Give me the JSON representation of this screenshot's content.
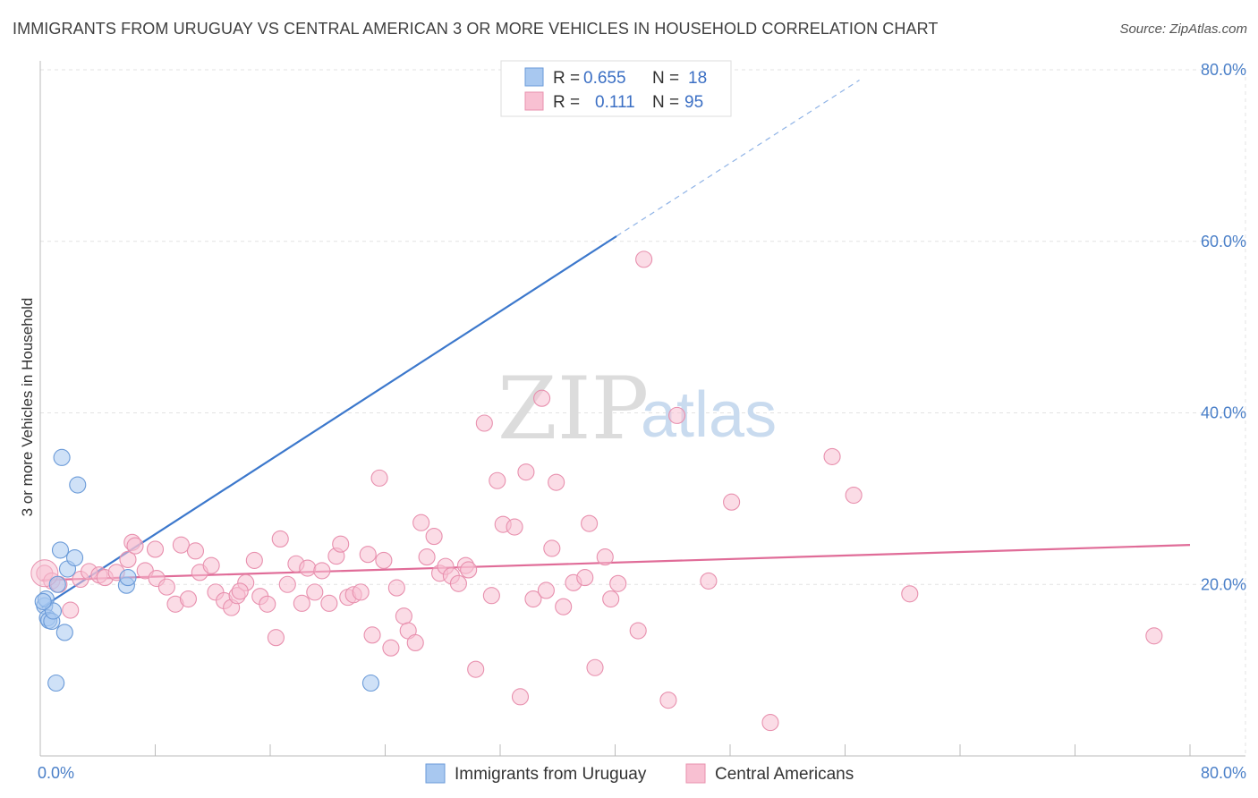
{
  "title": "IMMIGRANTS FROM URUGUAY VS CENTRAL AMERICAN 3 OR MORE VEHICLES IN HOUSEHOLD CORRELATION CHART",
  "source": "Source: ZipAtlas.com",
  "watermark": {
    "zip": "ZIP",
    "atlas": "atlas"
  },
  "legend_top": [
    {
      "r_label": "R =",
      "r_value": "0.655",
      "n_label": "N =",
      "n_value": "18",
      "color": "#a8c8f0",
      "stroke": "#6a9ad8"
    },
    {
      "r_label": "R =",
      "r_value": "0.111",
      "n_label": "N =",
      "n_value": "95",
      "color": "#f8c0d2",
      "stroke": "#e890ae"
    }
  ],
  "legend_bottom": [
    {
      "label": "Immigrants from Uruguay",
      "color": "#a8c8f0",
      "stroke": "#6a9ad8"
    },
    {
      "label": "Central Americans",
      "color": "#f8c0d2",
      "stroke": "#e890ae"
    }
  ],
  "chart_data": {
    "type": "scatter",
    "title": "IMMIGRANTS FROM URUGUAY VS CENTRAL AMERICAN 3 OR MORE VEHICLES IN HOUSEHOLD CORRELATION CHART",
    "xlabel": "",
    "ylabel": "3 or more Vehicles in Household",
    "xlim": [
      0,
      80
    ],
    "ylim": [
      0,
      80
    ],
    "x_tick_labels": [
      "0.0%",
      "80.0%"
    ],
    "y_ticks": [
      20,
      40,
      60,
      80
    ],
    "y_tick_labels": [
      "20.0%",
      "40.0%",
      "60.0%",
      "80.0%"
    ],
    "grid": true,
    "series": [
      {
        "name": "Immigrants from Uruguay",
        "color": "#6a9ad8",
        "fill": "#a8c8f0",
        "trend": {
          "x": [
            0.1,
            40.1
          ],
          "y": [
            17.3,
            60.6
          ],
          "dashed_to": [
            57.0,
            78.8
          ]
        },
        "points": [
          [
            0.3,
            17.5
          ],
          [
            0.4,
            18.3
          ],
          [
            0.5,
            16.1
          ],
          [
            0.6,
            15.8
          ],
          [
            0.8,
            15.7
          ],
          [
            0.9,
            16.9
          ],
          [
            1.1,
            8.5
          ],
          [
            1.2,
            20.0
          ],
          [
            1.4,
            24.0
          ],
          [
            1.5,
            34.8
          ],
          [
            1.7,
            14.4
          ],
          [
            1.9,
            21.8
          ],
          [
            2.4,
            23.1
          ],
          [
            2.6,
            31.6
          ],
          [
            6.0,
            19.9
          ],
          [
            6.1,
            20.8
          ],
          [
            23.0,
            8.5
          ],
          [
            0.2,
            18.0
          ]
        ]
      },
      {
        "name": "Central Americans",
        "color": "#e890ae",
        "fill": "#f8c0d2",
        "trend": {
          "x": [
            0.1,
            80.0
          ],
          "y": [
            20.5,
            24.6
          ]
        },
        "points": [
          [
            0.3,
            21.3
          ],
          [
            0.8,
            20.4
          ],
          [
            1.3,
            20.0
          ],
          [
            2.1,
            17.0
          ],
          [
            2.8,
            20.6
          ],
          [
            3.4,
            21.5
          ],
          [
            4.1,
            21.1
          ],
          [
            4.5,
            20.8
          ],
          [
            5.3,
            21.4
          ],
          [
            6.1,
            22.9
          ],
          [
            6.4,
            24.9
          ],
          [
            6.6,
            24.5
          ],
          [
            7.3,
            21.6
          ],
          [
            8.0,
            24.1
          ],
          [
            8.1,
            20.7
          ],
          [
            8.8,
            19.7
          ],
          [
            9.4,
            17.7
          ],
          [
            9.8,
            24.6
          ],
          [
            10.3,
            18.3
          ],
          [
            10.8,
            23.9
          ],
          [
            11.1,
            21.4
          ],
          [
            11.9,
            22.2
          ],
          [
            12.2,
            19.1
          ],
          [
            12.8,
            18.1
          ],
          [
            13.3,
            17.3
          ],
          [
            13.7,
            18.7
          ],
          [
            14.3,
            20.2
          ],
          [
            14.9,
            22.8
          ],
          [
            15.3,
            18.6
          ],
          [
            15.8,
            17.7
          ],
          [
            16.4,
            13.8
          ],
          [
            16.7,
            25.3
          ],
          [
            17.2,
            20.0
          ],
          [
            17.8,
            22.4
          ],
          [
            18.2,
            17.8
          ],
          [
            18.6,
            21.9
          ],
          [
            19.1,
            19.1
          ],
          [
            19.6,
            21.6
          ],
          [
            20.1,
            17.8
          ],
          [
            20.6,
            23.3
          ],
          [
            20.9,
            24.7
          ],
          [
            21.4,
            18.5
          ],
          [
            21.8,
            18.8
          ],
          [
            22.3,
            19.1
          ],
          [
            22.8,
            23.5
          ],
          [
            23.1,
            14.1
          ],
          [
            23.6,
            32.4
          ],
          [
            23.9,
            22.8
          ],
          [
            24.4,
            12.6
          ],
          [
            24.8,
            19.6
          ],
          [
            25.3,
            16.3
          ],
          [
            25.6,
            14.6
          ],
          [
            26.1,
            13.2
          ],
          [
            26.5,
            27.2
          ],
          [
            26.9,
            23.2
          ],
          [
            27.4,
            25.6
          ],
          [
            27.8,
            21.3
          ],
          [
            28.2,
            22.1
          ],
          [
            28.6,
            21.0
          ],
          [
            29.1,
            20.1
          ],
          [
            29.6,
            22.2
          ],
          [
            29.8,
            21.7
          ],
          [
            30.3,
            10.1
          ],
          [
            30.9,
            38.8
          ],
          [
            31.4,
            18.7
          ],
          [
            31.8,
            32.1
          ],
          [
            32.2,
            27.0
          ],
          [
            33.0,
            26.7
          ],
          [
            33.4,
            6.9
          ],
          [
            33.8,
            33.1
          ],
          [
            34.3,
            18.3
          ],
          [
            34.9,
            41.7
          ],
          [
            35.2,
            19.3
          ],
          [
            35.6,
            24.2
          ],
          [
            35.9,
            31.9
          ],
          [
            36.4,
            17.4
          ],
          [
            37.1,
            20.2
          ],
          [
            37.9,
            20.8
          ],
          [
            38.2,
            27.1
          ],
          [
            38.6,
            10.3
          ],
          [
            39.3,
            23.2
          ],
          [
            39.7,
            18.3
          ],
          [
            40.2,
            20.1
          ],
          [
            41.6,
            14.6
          ],
          [
            42.0,
            57.9
          ],
          [
            43.7,
            6.5
          ],
          [
            44.3,
            39.7
          ],
          [
            46.5,
            20.4
          ],
          [
            48.1,
            29.6
          ],
          [
            50.8,
            3.9
          ],
          [
            55.1,
            34.9
          ],
          [
            56.6,
            30.4
          ],
          [
            60.5,
            18.9
          ],
          [
            77.5,
            14.0
          ],
          [
            13.9,
            19.2
          ]
        ]
      }
    ]
  }
}
